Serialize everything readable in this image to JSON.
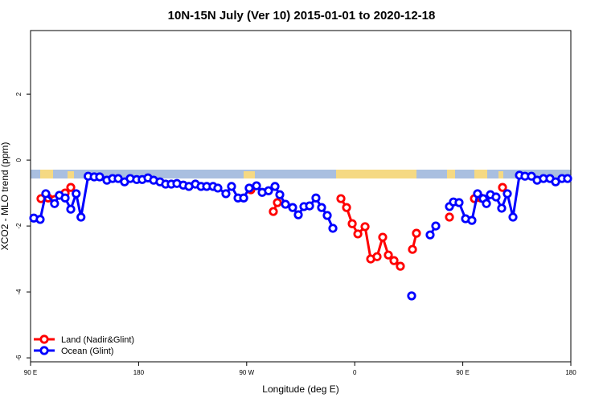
{
  "chart_data": {
    "type": "line",
    "title": "10N-15N July (Ver 10)   2015-01-01 to 2020-12-18",
    "x_label": "Longitude (deg E)",
    "y_label": "XCO2 - MLO trend (ppm)",
    "xlim": [
      90,
      540
    ],
    "xticks": [
      {
        "value": 90,
        "label": "90 E"
      },
      {
        "value": 180,
        "label": "180"
      },
      {
        "value": 270,
        "label": "90 W"
      },
      {
        "value": 360,
        "label": "0"
      },
      {
        "value": 450,
        "label": "90 E"
      },
      {
        "value": 540,
        "label": "180"
      }
    ],
    "ylim": [
      -6.12,
      3.93
    ],
    "yticks": [
      -6,
      -4,
      -2,
      0,
      2
    ],
    "legend": "bottom-left",
    "series": [
      {
        "name": "Land (Nadir&Glint)",
        "color": "#ff0000",
        "x": [
          98.7,
          104.7,
          118.8,
          123.5,
          null,
          273.5,
          null,
          292.2,
          295.6,
          null,
          348.5,
          353.2,
          357.9,
          362.6,
          368.6,
          373.3,
          378.6,
          383.3,
          388,
          392.7,
          398,
          null,
          408.1,
          411.4,
          null,
          438.9,
          null,
          459.7,
          465,
          null,
          483.1
        ],
        "values": [
          -1.17,
          -1.15,
          -1.0,
          -0.83,
          null,
          -0.9,
          null,
          -1.56,
          -1.29,
          null,
          -1.17,
          -1.44,
          -1.93,
          -2.24,
          -2.02,
          -3.0,
          -2.93,
          -2.34,
          -2.88,
          -3.05,
          -3.22,
          null,
          -2.71,
          -2.22,
          null,
          -1.73,
          null,
          -1.17,
          -1.15,
          null,
          -0.83
        ]
      },
      {
        "name": "Ocean (Glint)",
        "color": "#0000ff",
        "x": [
          92.7,
          98,
          102.7,
          110,
          114,
          118.8,
          123.5,
          128,
          132,
          138,
          143,
          147.6,
          153.6,
          158.3,
          163,
          168.3,
          173,
          178.4,
          183,
          187.8,
          192.5,
          197.8,
          202.5,
          207.2,
          211.9,
          217.2,
          221.9,
          227.3,
          232,
          236.7,
          242,
          246,
          252.7,
          257.4,
          262.8,
          267.5,
          272.1,
          278.2,
          282.9,
          288.2,
          293.6,
          297.6,
          302.3,
          308.3,
          313,
          317.7,
          322.4,
          327.7,
          332.4,
          337.1,
          341.8,
          null,
          407.4,
          null,
          422.8,
          427.5,
          null,
          438.9,
          442.2,
          446.9,
          452.3,
          457.6,
          462.3,
          467,
          469.7,
          473,
          477.7,
          482.4,
          487.1,
          491.8,
          497.2,
          501.8,
          507.2,
          511.9,
          517.2,
          522.6,
          527.3,
          532.6,
          537.3
        ],
        "values": [
          -1.76,
          -1.8,
          -1.02,
          -1.32,
          -1.07,
          -1.15,
          -1.49,
          -1.02,
          -1.73,
          -0.49,
          -0.51,
          -0.51,
          -0.61,
          -0.56,
          -0.56,
          -0.66,
          -0.56,
          -0.59,
          -0.59,
          -0.54,
          -0.61,
          -0.66,
          -0.73,
          -0.73,
          -0.71,
          -0.76,
          -0.8,
          -0.73,
          -0.8,
          -0.8,
          -0.8,
          -0.85,
          -1.02,
          -0.8,
          -1.15,
          -1.15,
          -0.85,
          -0.78,
          -0.98,
          -0.93,
          -0.8,
          -1.05,
          -1.34,
          -1.44,
          -1.66,
          -1.41,
          -1.39,
          -1.15,
          -1.44,
          -1.68,
          -2.07,
          null,
          -4.12,
          null,
          -2.27,
          -2.0,
          null,
          -1.41,
          -1.27,
          -1.29,
          -1.78,
          -1.83,
          -1.02,
          -1.17,
          -1.32,
          -1.05,
          -1.12,
          -1.46,
          -1.02,
          -1.73,
          -0.46,
          -0.49,
          -0.49,
          -0.61,
          -0.56,
          -0.56,
          -0.66,
          -0.56,
          -0.56
        ]
      }
    ]
  }
}
